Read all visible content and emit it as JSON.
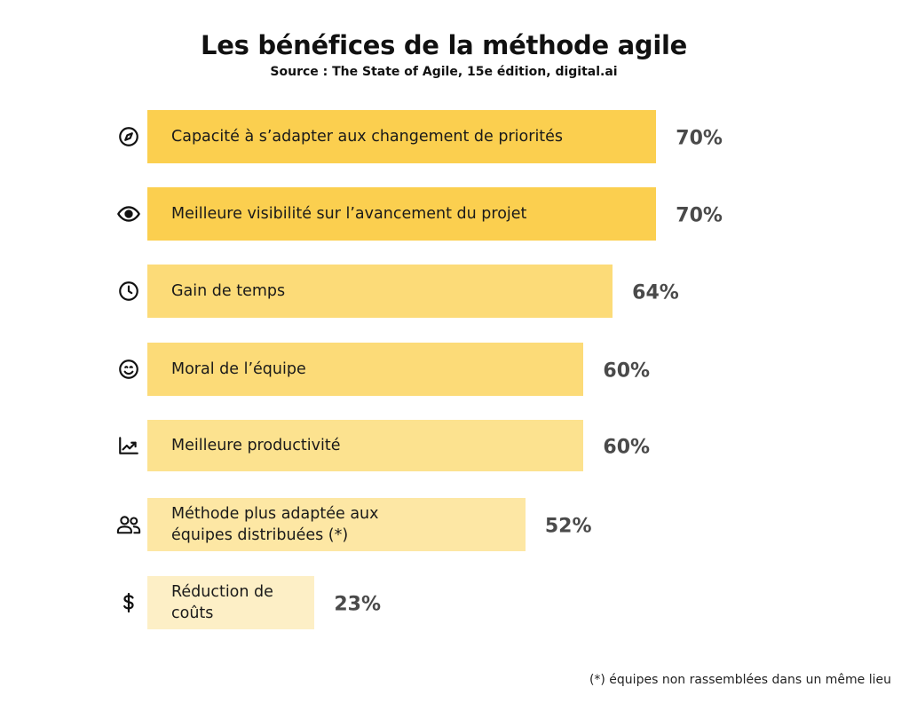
{
  "chart_data": {
    "type": "bar",
    "orientation": "horizontal",
    "title": "Les bénéfices de la méthode agile",
    "subtitle": "Source : The State of Agile, 15e édition, digital.ai",
    "categories": [
      "Capacité à s’adapter aux changement de priorités",
      "Meilleure visibilité sur l’avancement du projet",
      "Gain de temps",
      "Moral de l’équipe",
      "Meilleure productivité",
      "Méthode plus adaptée aux\néquipes distribuées (*)",
      "Réduction de\ncoûts"
    ],
    "values": [
      70,
      70,
      64,
      60,
      60,
      52,
      23
    ],
    "value_labels": [
      "70%",
      "70%",
      "64%",
      "60%",
      "60%",
      "52%",
      "23%"
    ],
    "icons": [
      "compass-icon",
      "eye-icon",
      "clock-icon",
      "smile-icon",
      "trend-up-icon",
      "users-icon",
      "dollar-icon"
    ],
    "colors": [
      "#fbcf4f",
      "#fbcf4f",
      "#fcdb78",
      "#fcdb78",
      "#fce28f",
      "#fde7a4",
      "#fdefc6"
    ],
    "ylim": [
      0,
      100
    ],
    "grid": false,
    "legend": "none",
    "footnote": "(*) équipes non rassemblées dans un même lieu"
  }
}
